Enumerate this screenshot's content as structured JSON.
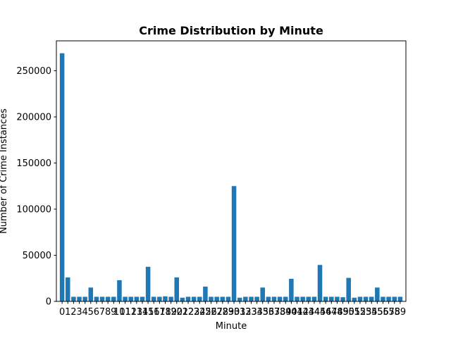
{
  "chart_data": {
    "type": "bar",
    "title": "Crime Distribution by Minute",
    "xlabel": "Minute",
    "ylabel": "Number of Crime Instances",
    "categories": [
      "0",
      "1",
      "2",
      "3",
      "4",
      "5",
      "6",
      "7",
      "8",
      "9",
      "10",
      "11",
      "12",
      "13",
      "14",
      "15",
      "16",
      "17",
      "18",
      "19",
      "20",
      "21",
      "22",
      "23",
      "24",
      "25",
      "26",
      "27",
      "28",
      "29",
      "30",
      "31",
      "32",
      "33",
      "34",
      "35",
      "36",
      "37",
      "38",
      "39",
      "40",
      "41",
      "42",
      "43",
      "44",
      "45",
      "46",
      "47",
      "48",
      "49",
      "50",
      "51",
      "52",
      "53",
      "54",
      "55",
      "56",
      "57",
      "58",
      "59"
    ],
    "values": [
      269000,
      26000,
      5000,
      5000,
      5000,
      15000,
      5000,
      5000,
      5000,
      5000,
      23000,
      5000,
      5000,
      5000,
      5000,
      37500,
      5000,
      5000,
      5500,
      5000,
      26000,
      4000,
      5000,
      5000,
      5000,
      16000,
      5000,
      5000,
      5000,
      5000,
      125000,
      4000,
      5000,
      5000,
      5000,
      15000,
      5000,
      5000,
      5000,
      5000,
      24500,
      5000,
      5000,
      5000,
      5000,
      39500,
      5000,
      5000,
      5000,
      4500,
      25500,
      4000,
      5000,
      5000,
      5000,
      15000,
      5000,
      5000,
      5000,
      5000
    ],
    "yticks": [
      0,
      50000,
      100000,
      150000,
      200000,
      250000
    ],
    "ylim": [
      0,
      282450
    ],
    "bar_color": "#1f77b4",
    "grid": false,
    "legend": "none"
  }
}
